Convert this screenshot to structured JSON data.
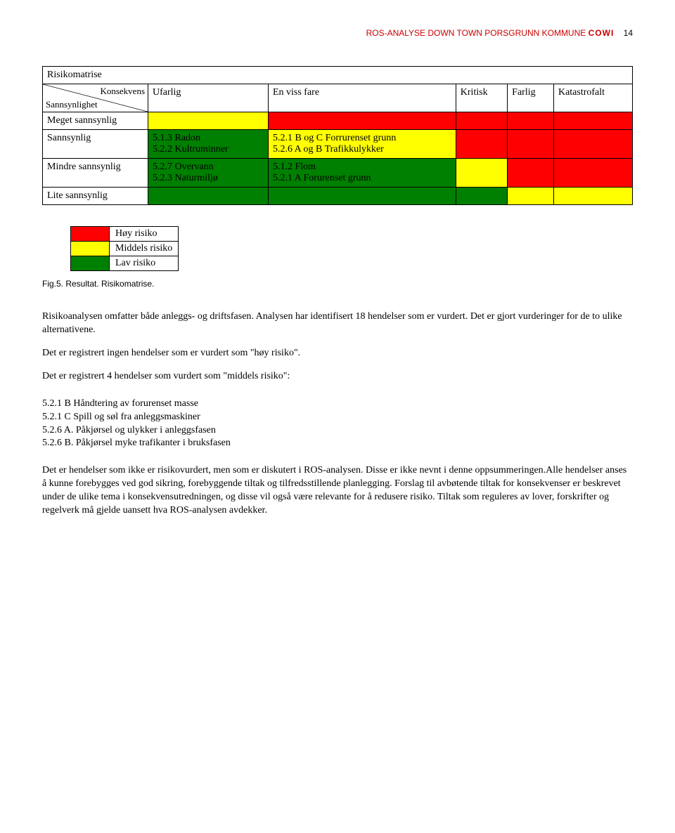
{
  "header": {
    "left": "ROS-ANALYSE DOWN TOWN PORSGRUNN KOMMUNE",
    "logo": "COWI",
    "page": "14"
  },
  "colors": {
    "red": "#ff0000",
    "yellow": "#ffff00",
    "green": "#008000",
    "white": "#ffffff"
  },
  "matrix": {
    "title": "Risikomatrise",
    "diag_top": "Konsekvens",
    "diag_bottom": "Sannsynlighet",
    "col_headers": [
      "Ufarlig",
      "En viss fare",
      "Kritisk",
      "Farlig",
      "Katastrofalt"
    ],
    "rows": [
      {
        "label": "Meget sannsynlig",
        "cells": [
          {
            "text": "",
            "bg": "yellow"
          },
          {
            "text": "",
            "bg": "red"
          },
          {
            "text": "",
            "bg": "red"
          },
          {
            "text": "",
            "bg": "red"
          },
          {
            "text": "",
            "bg": "red"
          }
        ]
      },
      {
        "label": "Sannsynlig",
        "cells": [
          {
            "text": "5.1.3 Radon\n5.2.2 Kultruminner",
            "bg": "green"
          },
          {
            "text": "5.2.1 B og C Forrurenset grunn\n5.2.6 A og B Trafikkulykker",
            "bg": "yellow"
          },
          {
            "text": "",
            "bg": "red"
          },
          {
            "text": "",
            "bg": "red"
          },
          {
            "text": "",
            "bg": "red"
          }
        ]
      },
      {
        "label": "Mindre sannsynlig",
        "cells": [
          {
            "text": "5.2.7 Overvann\n5.2.3 Naturmiljø",
            "bg": "green"
          },
          {
            "text": "5.1.2 Flom\n5.2.1 A Forurenset grunn",
            "bg": "green"
          },
          {
            "text": "",
            "bg": "yellow"
          },
          {
            "text": "",
            "bg": "red"
          },
          {
            "text": "",
            "bg": "red"
          }
        ]
      },
      {
        "label": "Lite sannsynlig",
        "cells": [
          {
            "text": "",
            "bg": "green"
          },
          {
            "text": "",
            "bg": "green"
          },
          {
            "text": "",
            "bg": "green"
          },
          {
            "text": "",
            "bg": "yellow"
          },
          {
            "text": "",
            "bg": "yellow"
          }
        ]
      }
    ]
  },
  "legend": {
    "items": [
      {
        "color": "red",
        "label": "Høy risiko"
      },
      {
        "color": "yellow",
        "label": "Middels risiko"
      },
      {
        "color": "green",
        "label": "Lav risiko"
      }
    ]
  },
  "caption": "Fig.5. Resultat. Risikomatrise.",
  "body": {
    "p1": "Risikoanalysen omfatter både anleggs- og driftsfasen. Analysen har identifisert 18 hendelser som er vurdert. Det er gjort vurderinger for de to ulike alternativene.",
    "p2": "Det er registrert ingen hendelser som er vurdert som \"høy risiko\".",
    "p3": "Det er registrert 4 hendelser som vurdert som \"middels risiko\":",
    "list": [
      "5.2.1 B Håndtering av forurenset masse",
      "5.2.1 C Spill og søl fra anleggsmaskiner",
      "5.2.6 A. Påkjørsel og ulykker i anleggsfasen",
      "5.2.6 B. Påkjørsel myke trafikanter i bruksfasen"
    ],
    "p4": "Det er hendelser som ikke er risikovurdert, men som er diskutert i ROS-analysen. Disse er ikke nevnt i denne oppsummeringen.Alle hendelser anses å kunne forebygges ved god sikring, forebyggende tiltak og tilfredsstillende planlegging. Forslag til avbøtende tiltak for konsekvenser er beskrevet under de ulike tema i konsekvensutredningen, og disse vil også være relevante for å redusere risiko. Tiltak som reguleres av lover, forskrifter og regelverk må gjelde uansett hva ROS-analysen avdekker."
  }
}
